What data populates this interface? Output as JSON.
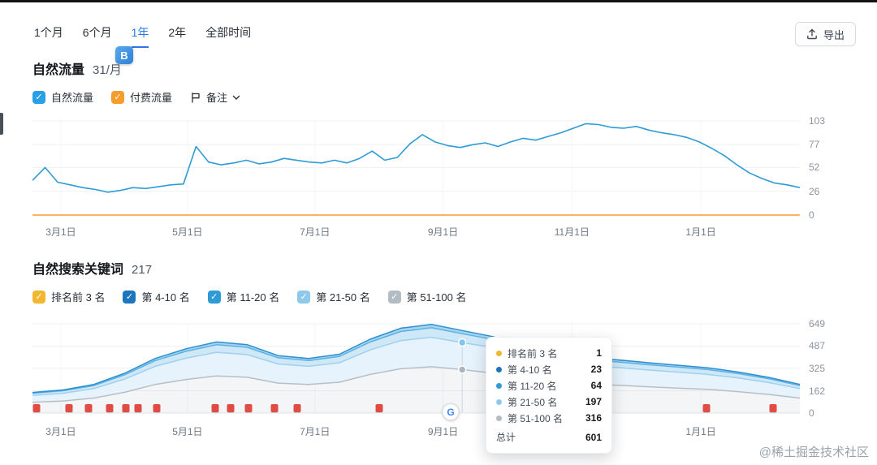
{
  "header": {
    "tabs": [
      "1个月",
      "6个月",
      "1年",
      "2年",
      "全部时间"
    ],
    "active_tab": "1年",
    "export_label": "导出"
  },
  "extension_badge": "B",
  "organic_traffic": {
    "title": "自然流量",
    "value": "31/月",
    "legend": [
      {
        "label": "自然流量",
        "color": "#29a0e6",
        "checked": true
      },
      {
        "label": "付费流量",
        "color": "#f59e2d",
        "checked": true
      }
    ],
    "notes_label": "备注"
  },
  "keywords": {
    "title": "自然搜索关键词",
    "count": "217",
    "legend": [
      {
        "label": "排名前 3 名",
        "color": "#f3b72f",
        "checked": true
      },
      {
        "label": "第 4-10 名",
        "color": "#1d76bd",
        "checked": true
      },
      {
        "label": "第 11-20 名",
        "color": "#2f9bd6",
        "checked": true
      },
      {
        "label": "第 21-50 名",
        "color": "#8ec9ec",
        "checked": true
      },
      {
        "label": "第 51-100 名",
        "color": "#b4bcc3",
        "checked": true
      }
    ]
  },
  "tooltip": {
    "rows": [
      {
        "label": "排名前 3 名",
        "value": "1",
        "color": "#f3b72f"
      },
      {
        "label": "第 4-10 名",
        "value": "23",
        "color": "#1d76bd"
      },
      {
        "label": "第 11-20 名",
        "value": "64",
        "color": "#2f9bd6"
      },
      {
        "label": "第 21-50 名",
        "value": "197",
        "color": "#8ec9ec"
      },
      {
        "label": "第 51-100 名",
        "value": "316",
        "color": "#b4bcc3"
      }
    ],
    "total_label": "总计",
    "total_value": "601"
  },
  "watermark": "@稀土掘金技术社区",
  "chart_data": [
    {
      "type": "line",
      "title": "自然流量",
      "ylabel": "",
      "xlabel": "",
      "ylim": [
        0,
        103
      ],
      "yticks": [
        0,
        26,
        52,
        77,
        103
      ],
      "x_labels": [
        {
          "text": "3月1日",
          "f": 0.037
        },
        {
          "text": "5月1日",
          "f": 0.202
        },
        {
          "text": "7月1日",
          "f": 0.368
        },
        {
          "text": "9月1日",
          "f": 0.535
        },
        {
          "text": "11月1日",
          "f": 0.703
        },
        {
          "text": "1月1日",
          "f": 0.871
        }
      ],
      "series": [
        {
          "name": "自然流量",
          "color": "#2f9bd6",
          "values": [
            38,
            52,
            36,
            33,
            30,
            28,
            25,
            27,
            30,
            29,
            31,
            33,
            34,
            75,
            58,
            55,
            57,
            60,
            56,
            58,
            62,
            60,
            58,
            57,
            60,
            57,
            62,
            70,
            60,
            63,
            78,
            88,
            80,
            76,
            74,
            77,
            79,
            75,
            80,
            84,
            82,
            86,
            90,
            95,
            100,
            99,
            96,
            95,
            97,
            93,
            90,
            88,
            85,
            80,
            73,
            65,
            55,
            46,
            40,
            35,
            33,
            30
          ]
        },
        {
          "name": "付费流量",
          "color": "#f59e2d",
          "flat_value": 0
        }
      ]
    },
    {
      "type": "stacked-area",
      "title": "自然搜索关键词",
      "ylabel": "",
      "xlabel": "",
      "ylim": [
        0,
        649
      ],
      "yticks": [
        0,
        162,
        325,
        487,
        649
      ],
      "x_labels": [
        {
          "text": "3月1日",
          "f": 0.037
        },
        {
          "text": "5月1日",
          "f": 0.202
        },
        {
          "text": "7月1日",
          "f": 0.368
        },
        {
          "text": "9月1日",
          "f": 0.535
        },
        {
          "text": "11月1日",
          "f": 0.703
        },
        {
          "text": "1月1日",
          "f": 0.871
        }
      ],
      "series": [
        {
          "name": "第 51-100 名",
          "color": "#b7bfc6",
          "fill": "rgba(183,191,198,0.16)",
          "values": [
            78,
            88,
            109,
            151,
            208,
            244,
            270,
            260,
            218,
            208,
            224,
            281,
            322,
            337,
            316,
            291,
            250,
            218,
            208,
            203,
            192,
            182,
            172,
            156,
            135,
            109
          ]
        },
        {
          "name": "第 21-50 名",
          "color": "#9fd0ef",
          "fill": "#e7f3fc",
          "values": [
            50,
            56,
            69,
            96,
            132,
            155,
            172,
            165,
            139,
            132,
            142,
            178,
            205,
            214,
            197,
            185,
            158,
            139,
            132,
            129,
            122,
            116,
            109,
            99,
            86,
            69
          ]
        },
        {
          "name": "第 11-20 名",
          "color": "#5fb1e2",
          "fill": "#cfe8f8",
          "values": [
            16,
            18,
            22,
            31,
            42,
            50,
            55,
            53,
            45,
            42,
            46,
            57,
            66,
            69,
            64,
            59,
            51,
            45,
            42,
            41,
            39,
            37,
            35,
            32,
            28,
            22
          ]
        },
        {
          "name": "第 4-10 名",
          "color": "#2b8fd0",
          "fill": "#a6d4f0",
          "values": [
            6,
            6,
            8,
            11,
            15,
            18,
            20,
            19,
            16,
            15,
            16,
            21,
            24,
            25,
            23,
            21,
            18,
            16,
            15,
            15,
            14,
            13,
            13,
            11,
            10,
            8
          ]
        },
        {
          "name": "排名前 3 名",
          "color": "#f3b72f",
          "fill": "#f3b72f",
          "no_stroke": true,
          "values": [
            0,
            0,
            0,
            1,
            1,
            1,
            1,
            1,
            1,
            1,
            1,
            1,
            1,
            1,
            1,
            1,
            1,
            1,
            1,
            1,
            1,
            1,
            1,
            1,
            1,
            1
          ]
        }
      ],
      "active": {
        "f": 0.56,
        "points": [
          {
            "value": 513,
            "color": "#85c3ec"
          },
          {
            "value": 316,
            "color": "#aeb6bd"
          }
        ]
      },
      "event_flags_f": [
        0.005,
        0.048,
        0.073,
        0.1,
        0.122,
        0.138,
        0.162,
        0.238,
        0.258,
        0.282,
        0.315,
        0.345,
        0.452,
        0.878,
        0.965
      ],
      "google_icon_f": 0.545
    }
  ]
}
